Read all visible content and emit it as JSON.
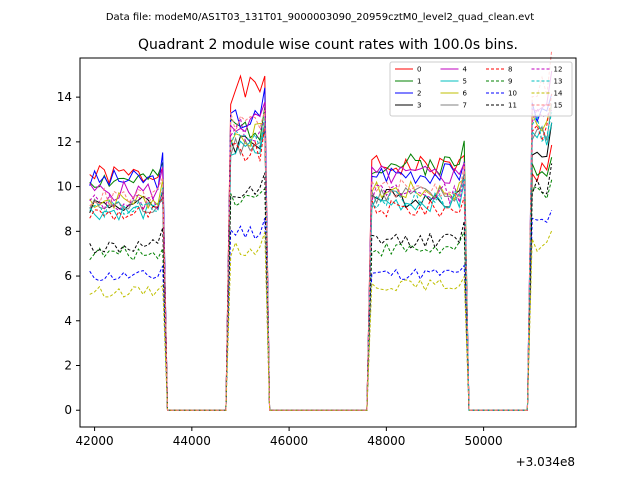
{
  "chart_data": {
    "type": "line",
    "suptitle": "Data file: modeM0/AS1T03_131T01_9000003090_20959cztM0_level2_quad_clean.evt",
    "title": "Quadrant 2 module wise count rates with 100.0s bins.",
    "xlabel": "",
    "ylabel": "",
    "x_offset_label": "+3.034e8",
    "xlim": [
      41700,
      51900
    ],
    "ylim": [
      -0.75,
      15.75
    ],
    "xticks": [
      42000,
      44000,
      46000,
      48000,
      50000
    ],
    "xtick_labels": [
      "42000",
      "44000",
      "46000",
      "48000",
      "50000"
    ],
    "yticks": [
      0,
      2,
      4,
      6,
      8,
      10,
      12,
      14
    ],
    "ytick_labels": [
      "0",
      "2",
      "4",
      "6",
      "8",
      "10",
      "12",
      "14"
    ],
    "legend_position": "upper right",
    "legend_columns": 4,
    "series": [
      {
        "name": "0",
        "color": "#ff0000",
        "dashed": false,
        "levels": [
          10.5,
          14.3,
          10.9,
          10.7
        ]
      },
      {
        "name": "1",
        "color": "#008000",
        "dashed": false,
        "levels": [
          10.3,
          12.6,
          11.0,
          10.9
        ]
      },
      {
        "name": "2",
        "color": "#0000ff",
        "dashed": false,
        "levels": [
          10.3,
          13.0,
          10.6,
          13.3
        ]
      },
      {
        "name": "3",
        "color": "#000000",
        "dashed": false,
        "levels": [
          9.2,
          12.0,
          9.5,
          11.8
        ]
      },
      {
        "name": "4",
        "color": "#bf00bf",
        "dashed": false,
        "levels": [
          9.8,
          12.8,
          10.5,
          13.6
        ]
      },
      {
        "name": "5",
        "color": "#00bfbf",
        "dashed": false,
        "levels": [
          8.9,
          11.6,
          9.3,
          12.3
        ]
      },
      {
        "name": "6",
        "color": "#bfbf00",
        "dashed": false,
        "levels": [
          9.4,
          12.3,
          9.8,
          12.8
        ]
      },
      {
        "name": "7",
        "color": "#808080",
        "dashed": false,
        "levels": [
          9.1,
          11.9,
          9.6,
          12.5
        ]
      },
      {
        "name": "8",
        "color": "#ff0000",
        "dashed": true,
        "levels": [
          8.8,
          11.5,
          9.0,
          12.6
        ]
      },
      {
        "name": "9",
        "color": "#008000",
        "dashed": true,
        "levels": [
          7.0,
          9.5,
          7.2,
          9.8
        ]
      },
      {
        "name": "10",
        "color": "#0000ff",
        "dashed": true,
        "levels": [
          6.0,
          8.0,
          6.1,
          8.3
        ]
      },
      {
        "name": "11",
        "color": "#000000",
        "dashed": true,
        "levels": [
          7.3,
          9.6,
          7.6,
          10.0
        ]
      },
      {
        "name": "12",
        "color": "#bf00bf",
        "dashed": true,
        "levels": [
          9.3,
          12.5,
          9.7,
          13.0
        ]
      },
      {
        "name": "13",
        "color": "#00bfbf",
        "dashed": true,
        "levels": [
          9.0,
          12.2,
          9.4,
          12.6
        ]
      },
      {
        "name": "14",
        "color": "#bfbf00",
        "dashed": true,
        "levels": [
          5.3,
          7.2,
          5.6,
          7.4
        ]
      },
      {
        "name": "15",
        "color": "#ff8080",
        "dashed": true,
        "levels": [
          9.5,
          12.9,
          9.9,
          14.5
        ]
      }
    ],
    "segments": [
      {
        "start": 41900,
        "end": 43450
      },
      {
        "start": 44800,
        "end": 45550
      },
      {
        "start": 47700,
        "end": 49650
      },
      {
        "start": 50950,
        "end": 51450
      }
    ],
    "bin_size": 100
  }
}
